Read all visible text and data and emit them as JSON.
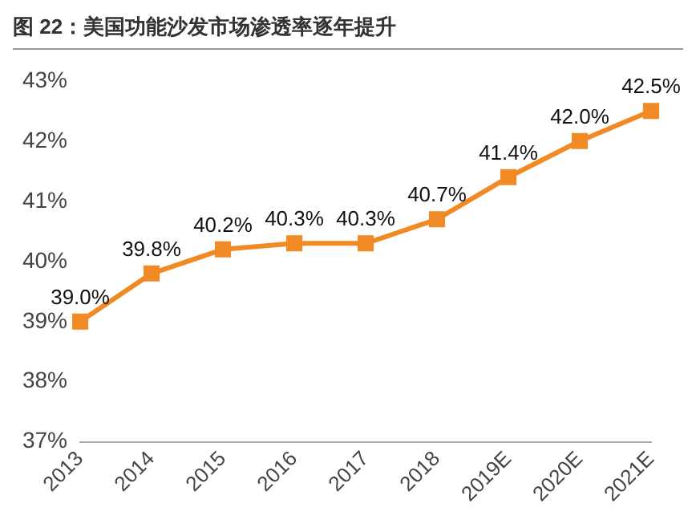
{
  "chart_data": {
    "type": "line",
    "title": "图 22：美国功能沙发市场渗透率逐年提升",
    "categories": [
      "2013",
      "2014",
      "2015",
      "2016",
      "2017",
      "2018",
      "2019E",
      "2020E",
      "2021E"
    ],
    "series": [
      {
        "color": "#f08a24",
        "values": [
          39.0,
          39.8,
          40.2,
          40.3,
          40.3,
          40.7,
          41.4,
          42.0,
          42.5
        ],
        "value_labels": [
          "39.0%",
          "39.8%",
          "40.2%",
          "40.3%",
          "40.3%",
          "40.7%",
          "41.4%",
          "42.0%",
          "42.5%"
        ]
      }
    ],
    "ylim": [
      37,
      43
    ],
    "yticks": [
      {
        "value": 37,
        "label": "37%"
      },
      {
        "value": 38,
        "label": "38%"
      },
      {
        "value": 39,
        "label": "39%"
      },
      {
        "value": 40,
        "label": "40%"
      },
      {
        "value": 41,
        "label": "41%"
      },
      {
        "value": 42,
        "label": "42%"
      },
      {
        "value": 43,
        "label": "43%"
      }
    ],
    "grid": false,
    "legend": false,
    "marker": "square",
    "line_style": "solid"
  }
}
